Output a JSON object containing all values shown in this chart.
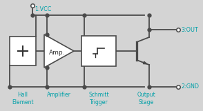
{
  "bg_color": "#d4d4d4",
  "wire_color": "#4a4a4a",
  "block_color": "#ffffff",
  "label_color": "#00a0a8",
  "text_color": "#333333",
  "vcc_label": "1:VCC",
  "gnd_label": "2:GND",
  "out_label": "3:OUT",
  "hall_label": "Hall\nElement",
  "amp_label": "Amplifier",
  "schmitt_label": "Schmitt\nTrigger",
  "output_label": "Output\nStage",
  "amp_text": "Amp.",
  "figsize": [
    2.94,
    1.61
  ],
  "dpi": 100
}
